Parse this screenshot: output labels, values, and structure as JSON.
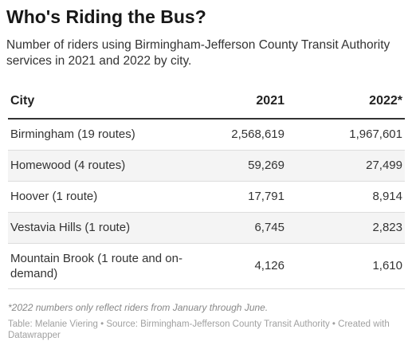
{
  "title": "Who's Riding the Bus?",
  "subtitle": "Number of riders using Birmingham-Jefferson County Transit Authority services in 2021 and 2022 by city.",
  "chart_data": {
    "type": "table",
    "columns": [
      "City",
      "2021",
      "2022*"
    ],
    "rows": [
      [
        "Birmingham (19 routes)",
        "2,568,619",
        "1,967,601"
      ],
      [
        "Homewood (4 routes)",
        "59,269",
        "27,499"
      ],
      [
        "Hoover (1 route)",
        "17,791",
        "8,914"
      ],
      [
        "Vestavia Hills (1 route)",
        "6,745",
        "2,823"
      ],
      [
        "Mountain Brook (1 route and on-demand)",
        "4,126",
        "1,610"
      ]
    ]
  },
  "note": "*2022 numbers only reflect riders from January through June.",
  "footer": "Table: Melanie Viering • Source: Birmingham-Jefferson County Transit Authority • Created with Datawrapper"
}
